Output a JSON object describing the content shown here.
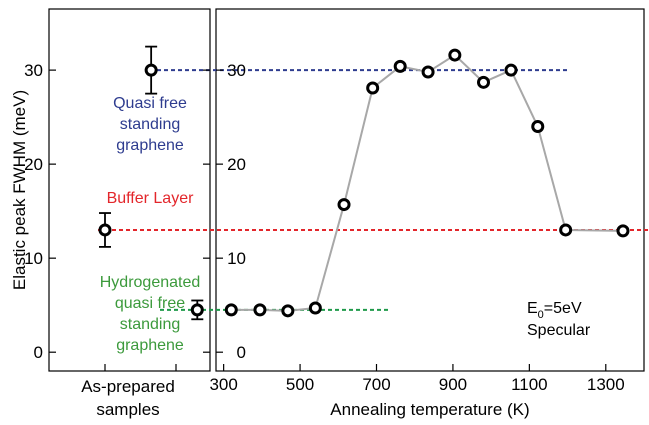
{
  "chart_data": [
    {
      "type": "scatter",
      "panel": "left",
      "ylabel": "Elastic peak FWHM (meV)",
      "xlabel": "As-prepared samples",
      "ylim": [
        -2,
        36.5
      ],
      "yticks": [
        "0",
        "10",
        "20",
        "30"
      ],
      "categories": [
        "Quasi free standing graphene",
        "Buffer Layer",
        "Hydrogenated quasi free standing graphene"
      ],
      "series": [
        {
          "points": [
            {
              "x": 1.3,
              "y": 30,
              "err": 2.5
            },
            {
              "x": 0.0,
              "y": 13,
              "err": 1.8
            },
            {
              "x": 2.6,
              "y": 4.5,
              "err": 1.0
            }
          ]
        }
      ],
      "annotations": [
        {
          "lines": [
            "Quasi free",
            "standing",
            "graphene"
          ],
          "color": "#2e3c8f"
        },
        {
          "lines": [
            "Buffer Layer"
          ],
          "color": "#e3262b"
        },
        {
          "lines": [
            "Hydrogenated",
            "quasi free",
            "standing",
            "graphene"
          ],
          "color": "#3c9a3c"
        }
      ],
      "reference_lines": [
        {
          "y": 30,
          "color": "#2e3c8f",
          "style": "dashed"
        },
        {
          "y": 13,
          "color": "#e3262b",
          "style": "dashed"
        },
        {
          "y": 4.5,
          "color": "#1f9a4a",
          "style": "dashed"
        }
      ]
    },
    {
      "type": "line",
      "panel": "right",
      "xlabel": "Annealing temperature (K)",
      "xlim": [
        280,
        1400
      ],
      "ylim": [
        -2,
        36.5
      ],
      "xticks": [
        "300",
        "500",
        "700",
        "900",
        "1100",
        "1300"
      ],
      "yticks": [
        "0",
        "10",
        "20",
        "30"
      ],
      "series": [
        {
          "x": [
            320,
            395,
            468,
            540,
            615,
            690,
            762,
            835,
            905,
            980,
            1052,
            1122,
            1195,
            1345
          ],
          "y": [
            4.5,
            4.5,
            4.4,
            4.7,
            15.7,
            28.1,
            30.4,
            29.8,
            31.6,
            28.7,
            30.0,
            24.0,
            13.0,
            12.9
          ]
        }
      ],
      "annotations": [
        {
          "lines": [
            "E0=5eV",
            "Specular"
          ],
          "color": "#000000"
        }
      ]
    }
  ]
}
